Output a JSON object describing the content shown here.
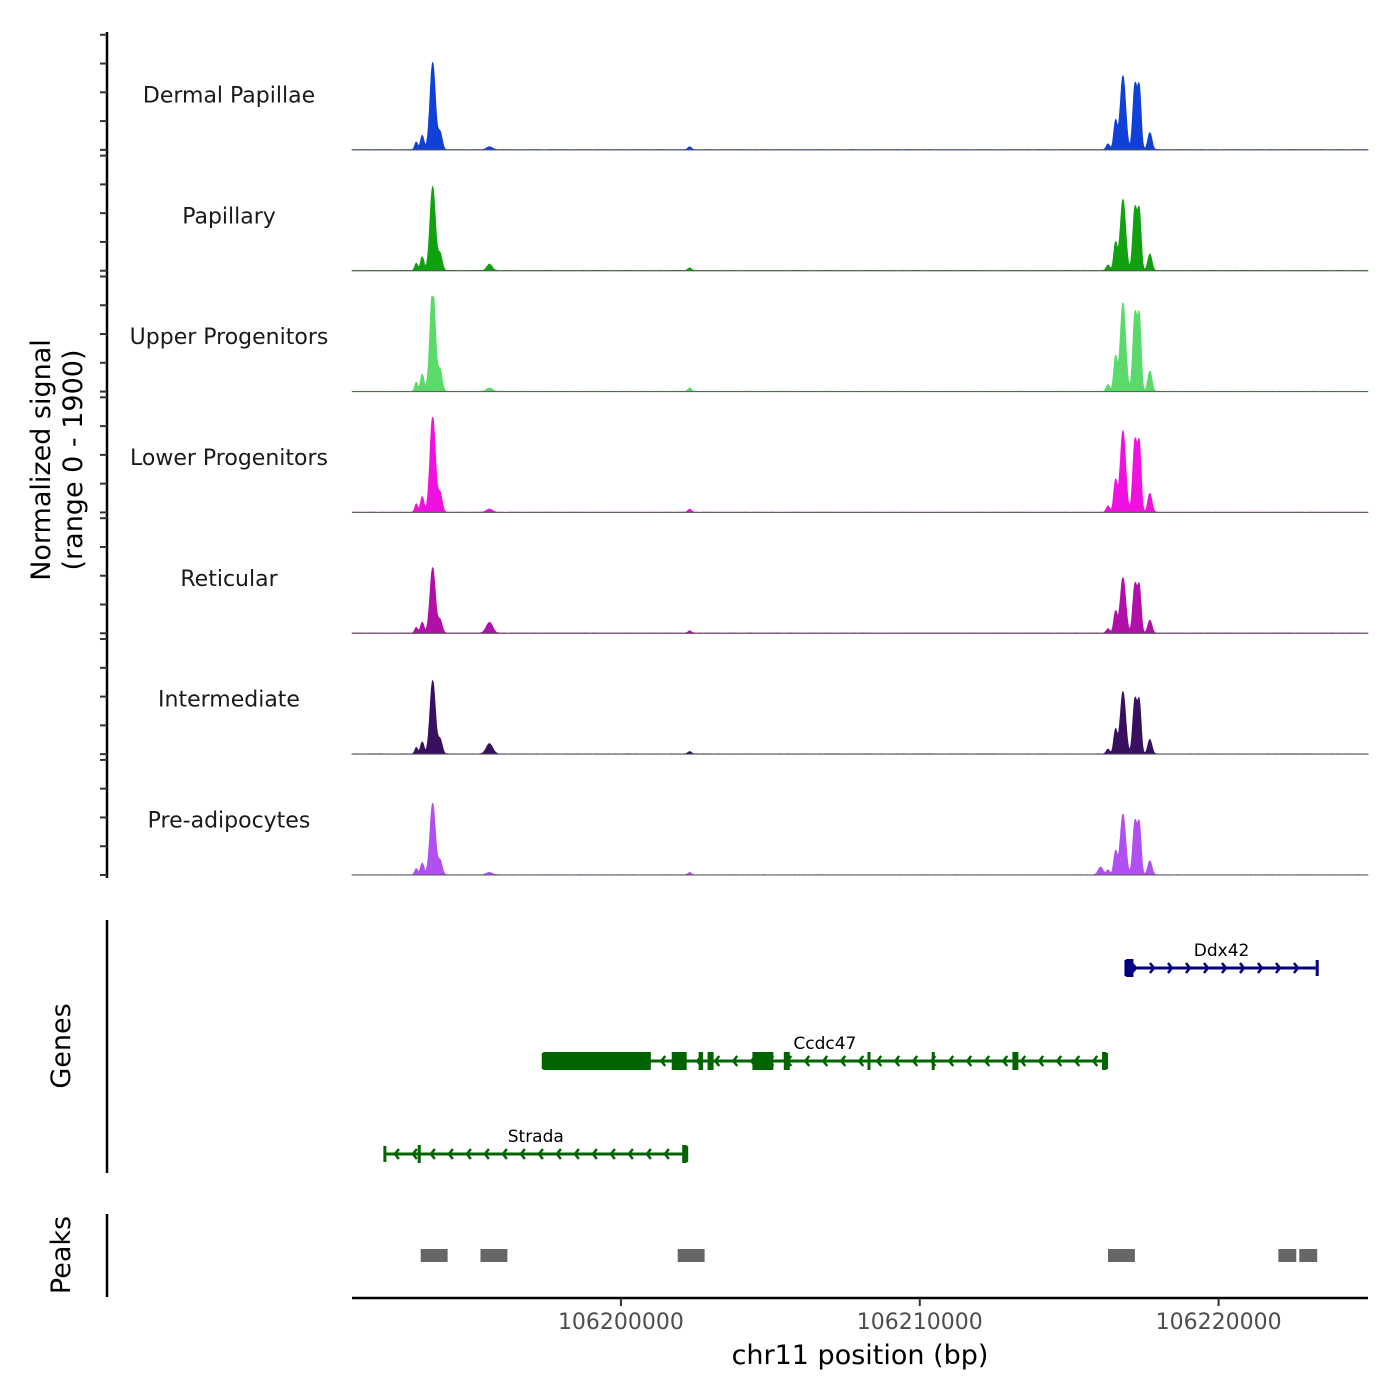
{
  "chart_data": {
    "type": "area",
    "title": "",
    "chromosome": "chr11",
    "xlabel": "chr11 position (bp)",
    "ylabel_line1": "Normalized signal",
    "ylabel_line2": "(range 0 - 1900)",
    "xlim": [
      106191000,
      106225000
    ],
    "ylim": [
      0,
      1900
    ],
    "x_ticks": [
      106200000,
      106210000,
      106220000
    ],
    "x_tick_labels": [
      "106200000",
      "106210000",
      "106220000"
    ],
    "peak_profile": {
      "unit": "fraction of ylim",
      "peaks": [
        {
          "center": 106193700,
          "width": 90,
          "height": 0.92
        },
        {
          "center": 106193950,
          "width": 70,
          "height": 0.18
        },
        {
          "center": 106193350,
          "width": 60,
          "height": 0.15
        },
        {
          "center": 106193150,
          "width": 50,
          "height": 0.08
        },
        {
          "center": 106195600,
          "width": 100,
          "height": 0.03
        },
        {
          "center": 106202300,
          "width": 60,
          "height": 0.03
        },
        {
          "center": 106216800,
          "width": 90,
          "height": 0.78
        },
        {
          "center": 106216550,
          "width": 60,
          "height": 0.3
        },
        {
          "center": 106217200,
          "width": 70,
          "height": 0.68
        },
        {
          "center": 106217350,
          "width": 60,
          "height": 0.62
        },
        {
          "center": 106217700,
          "width": 70,
          "height": 0.18
        },
        {
          "center": 106216300,
          "width": 60,
          "height": 0.06
        }
      ]
    },
    "series": [
      {
        "name": "Dermal Papillae",
        "color": "#1040d8",
        "scale": 1.0,
        "extra_peaks": []
      },
      {
        "name": "Papillary",
        "color": "#10a010",
        "scale": 0.96,
        "extra_peaks": [
          {
            "center": 106195600,
            "width": 80,
            "height": 0.04
          }
        ]
      },
      {
        "name": "Upper Progenitors",
        "color": "#5ada6a",
        "scale": 1.2,
        "extra_peaks": []
      },
      {
        "name": "Lower Progenitors",
        "color": "#f010e0",
        "scale": 1.1,
        "extra_peaks": []
      },
      {
        "name": "Reticular",
        "color": "#b010a8",
        "scale": 0.75,
        "extra_peaks": [
          {
            "center": 106195600,
            "width": 110,
            "height": 0.12
          }
        ]
      },
      {
        "name": "Intermediate",
        "color": "#381060",
        "scale": 0.84,
        "extra_peaks": [
          {
            "center": 106195600,
            "width": 110,
            "height": 0.1
          }
        ]
      },
      {
        "name": "Pre-adipocytes",
        "color": "#b050f0",
        "scale": 0.82,
        "extra_peaks": [
          {
            "center": 106216050,
            "width": 80,
            "height": 0.1
          }
        ]
      }
    ],
    "genes_track_label": "Genes",
    "genes": [
      {
        "name": "Ddx42",
        "strand": "+",
        "start": 106216900,
        "end": 106223300,
        "color": "#000080",
        "exons": [
          [
            106216900,
            106217150
          ]
        ]
      },
      {
        "name": "Ccdc47",
        "strand": "-",
        "start": 106197400,
        "end": 106216250,
        "color": "#006400",
        "exons": [
          [
            106197400,
            106201000
          ],
          [
            106201700,
            106202200
          ],
          [
            106202600,
            106202750
          ],
          [
            106202900,
            106203100
          ],
          [
            106204400,
            106205100
          ],
          [
            106205450,
            106205650
          ],
          [
            106208250,
            106208350
          ],
          [
            106210400,
            106210500
          ],
          [
            106213100,
            106213300
          ],
          [
            106216100,
            106216250
          ]
        ]
      },
      {
        "name": "Strada",
        "strand": "-",
        "start": 106192100,
        "end": 106202200,
        "color": "#006400",
        "exons": [
          [
            106193200,
            106193300
          ],
          [
            106202050,
            106202200
          ]
        ]
      }
    ],
    "peaks_track_label": "Peaks",
    "peak_regions": [
      [
        106193300,
        106194200
      ],
      [
        106195300,
        106196200
      ],
      [
        106201900,
        106202800
      ],
      [
        106216300,
        106217200
      ],
      [
        106222000,
        106222600
      ],
      [
        106222700,
        106223300
      ]
    ],
    "peak_color": "#666666"
  }
}
